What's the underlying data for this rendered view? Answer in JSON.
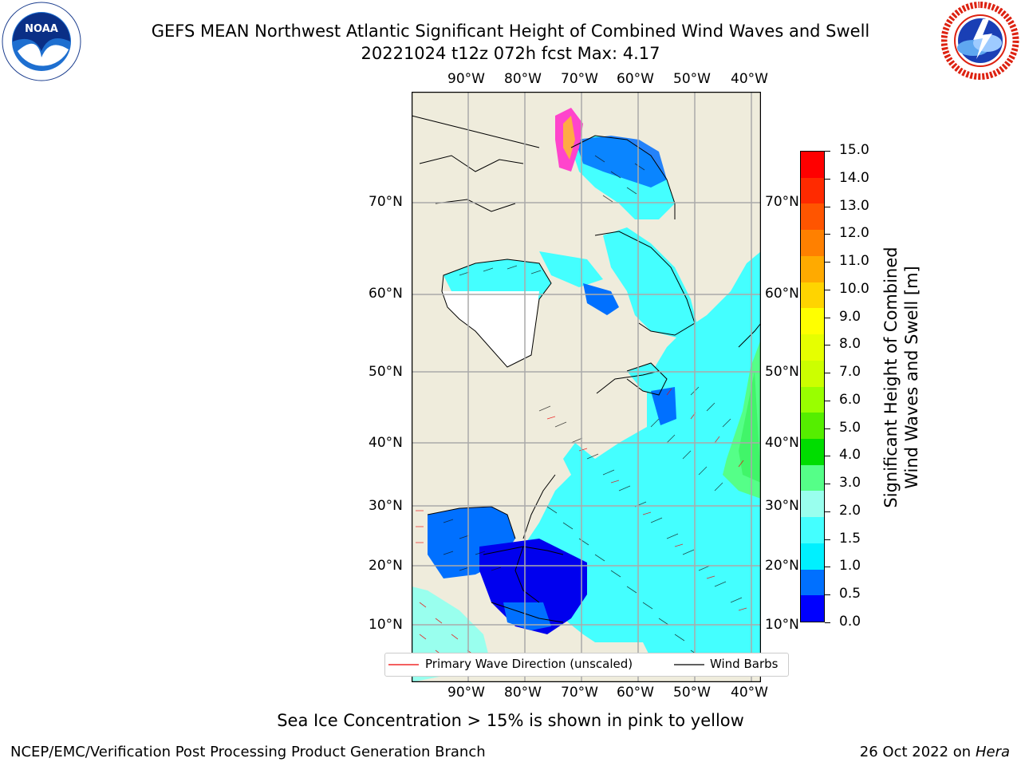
{
  "header": {
    "title_line1": "GEFS MEAN Northwest Atlantic Significant Height of Combined Wind Waves and Swell",
    "title_line2": "20221024 t12z 072h fcst   Max: 4.17"
  },
  "logos": {
    "left": {
      "name": "NOAA",
      "ring_text": "NATIONAL OCEANIC AND ATMOSPHERIC ADMINISTRATION",
      "bottom_text": "U.S. DEPARTMENT OF COMMERCE"
    },
    "right": {
      "ring_text": "NATIONAL WEATHER SERVICE"
    }
  },
  "map": {
    "lon_labels": [
      "90°W",
      "80°W",
      "70°W",
      "60°W",
      "50°W",
      "40°W"
    ],
    "lat_labels": [
      "70°N",
      "60°N",
      "50°N",
      "40°N",
      "30°N",
      "20°N",
      "10°N"
    ]
  },
  "colorbar": {
    "label_line1": "Significant Height of Combined",
    "label_line2": "Wind Waves and Swell [m]",
    "ticks": [
      "15.0",
      "14.0",
      "13.0",
      "12.0",
      "11.0",
      "10.0",
      "9.0",
      "8.0",
      "7.0",
      "6.0",
      "5.0",
      "4.0",
      "3.0",
      "2.0",
      "1.5",
      "1.0",
      "0.5",
      "0.0"
    ],
    "colors": [
      "#ff0000",
      "#ff2a00",
      "#ff5500",
      "#ff8000",
      "#ffaa00",
      "#ffd400",
      "#ffff00",
      "#e6ff00",
      "#ccff00",
      "#99ff00",
      "#55ee00",
      "#00dd00",
      "#55ff88",
      "#99ffee",
      "#44ffff",
      "#00f0ff",
      "#0070ff",
      "#0000ff"
    ]
  },
  "legend": {
    "wave_label": "Primary Wave Direction (unscaled)",
    "barb_label": "Wind Barbs"
  },
  "notes": {
    "sea_ice": "Sea Ice Concentration > 15% is shown in pink to yellow"
  },
  "footer": {
    "left": "NCEP/EMC/Verification Post Processing Product Generation Branch",
    "right_date": "26 Oct 2022 on ",
    "right_host": "Hera"
  }
}
